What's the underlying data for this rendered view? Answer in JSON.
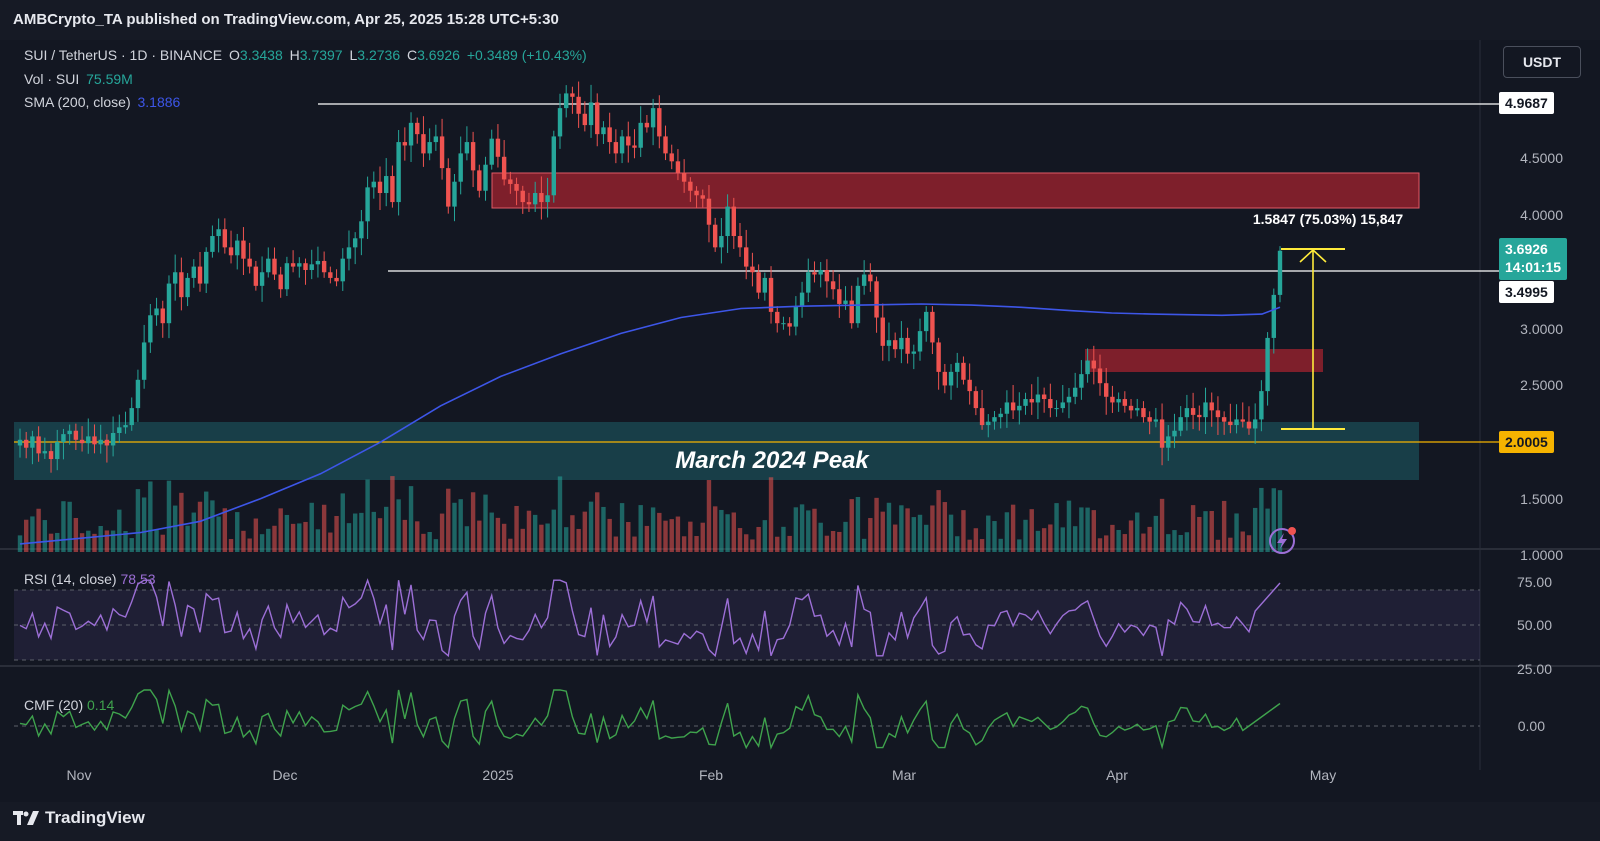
{
  "header": {
    "text": "AMBCrypto_TA published on TradingView.com, Apr 25, 2025 15:28 UTC+5:30"
  },
  "footer": {
    "logo_text": "TradingView",
    "logo_icon": "tradingview-logo-icon"
  },
  "legend": {
    "symbol": "SUI / TetherUS · 1D · BINANCE",
    "open_label": "O",
    "open": "3.3438",
    "high_label": "H",
    "high": "3.7397",
    "low_label": "L",
    "low": "3.2736",
    "close_label": "C",
    "close": "3.6926",
    "change": "+0.3489 (+10.43%)",
    "volume_label": "Vol · SUI",
    "volume": "75.59M",
    "sma_label": "SMA (200, close)",
    "sma": "3.1886"
  },
  "currency": "USDT",
  "price_tags": {
    "resistance_top": "4.9687",
    "last_price": "3.6926",
    "countdown": "14:01:15",
    "resistance_mid": "3.4995",
    "support": "2.0005"
  },
  "annotations": {
    "zone_label": "March 2024 Peak",
    "measure": "1.5847 (75.03%) 15,847"
  },
  "rsi": {
    "label": "RSI (14, close)",
    "value": "78.53",
    "ticks": [
      "75.00",
      "50.00",
      "25.00"
    ]
  },
  "cmf": {
    "label": "CMF (20)",
    "value": "0.14",
    "ticks": [
      "0.00"
    ]
  },
  "colors": {
    "up": "#26a69a",
    "down": "#ef5350",
    "sma": "#3d56e8",
    "supply_zone": "#a3232f",
    "demand_zone": "#1e5e68",
    "measure": "#ffeb3b",
    "rsi": "#9c6fd6",
    "cmf": "#3fa34d",
    "support_line": "#f5b300"
  },
  "chart_data": {
    "type": "candlestick",
    "title": "SUI / TetherUS · 1D · BINANCE",
    "x_ticks": [
      "Nov",
      "Dec",
      "2025",
      "Feb",
      "Mar",
      "Apr",
      "May"
    ],
    "y_ticks": [
      "4.5000",
      "4.0000",
      "3.0000",
      "2.5000",
      "1.5000",
      "1.0000"
    ],
    "ylim": [
      1.0,
      5.4
    ],
    "horizontal_levels": [
      4.9687,
      3.4995,
      2.0005
    ],
    "supply_zones": [
      [
        4.05,
        4.35
      ],
      [
        2.64,
        2.82
      ]
    ],
    "demand_zone": [
      1.67,
      2.17
    ],
    "measure": {
      "from": 2.107,
      "to": 3.692,
      "change": 1.5847,
      "percent": 75.03
    },
    "closes": [
      2.02,
      1.95,
      2.05,
      1.9,
      1.92,
      1.85,
      2.0,
      2.07,
      2.1,
      2.02,
      1.99,
      2.05,
      1.98,
      2.02,
      1.97,
      2.08,
      2.13,
      2.15,
      2.3,
      2.55,
      2.88,
      3.12,
      3.18,
      3.05,
      3.4,
      3.5,
      3.28,
      3.45,
      3.55,
      3.4,
      3.68,
      3.82,
      3.88,
      3.72,
      3.65,
      3.78,
      3.62,
      3.55,
      3.38,
      3.5,
      3.62,
      3.48,
      3.35,
      3.58,
      3.55,
      3.58,
      3.52,
      3.57,
      3.6,
      3.5,
      3.45,
      3.42,
      3.62,
      3.72,
      3.8,
      3.95,
      4.25,
      4.3,
      4.2,
      4.35,
      4.12,
      4.65,
      4.62,
      4.82,
      4.72,
      4.55,
      4.65,
      4.7,
      4.42,
      4.08,
      4.3,
      4.55,
      4.65,
      4.4,
      4.22,
      4.45,
      4.68,
      4.52,
      4.32,
      4.28,
      4.22,
      4.12,
      4.1,
      4.2,
      4.12,
      4.18,
      4.7,
      4.95,
      5.08,
      5.05,
      4.9,
      4.8,
      5.0,
      4.72,
      4.78,
      4.65,
      4.55,
      4.7,
      4.62,
      4.6,
      4.82,
      4.78,
      4.95,
      4.7,
      4.55,
      4.48,
      4.38,
      4.3,
      4.22,
      4.18,
      4.15,
      3.92,
      3.72,
      3.82,
      4.08,
      3.82,
      3.72,
      3.55,
      3.5,
      3.32,
      3.45,
      3.15,
      3.05,
      3.05,
      3.02,
      3.2,
      3.32,
      3.5,
      3.48,
      3.52,
      3.42,
      3.35,
      3.22,
      3.25,
      3.05,
      3.38,
      3.48,
      3.42,
      3.1,
      2.85,
      2.9,
      2.82,
      2.92,
      2.78,
      2.8,
      2.98,
      3.15,
      2.88,
      2.62,
      2.5,
      2.62,
      2.7,
      2.55,
      2.45,
      2.3,
      2.15,
      2.18,
      2.22,
      2.25,
      2.35,
      2.28,
      2.32,
      2.38,
      2.35,
      2.42,
      2.38,
      2.3,
      2.3,
      2.35,
      2.4,
      2.48,
      2.6,
      2.72,
      2.65,
      2.52,
      2.4,
      2.35,
      2.38,
      2.32,
      2.28,
      2.3,
      2.22,
      2.18,
      2.2,
      1.95,
      2.05,
      2.1,
      2.22,
      2.3,
      2.24,
      2.22,
      2.35,
      2.28,
      2.22,
      2.18,
      2.15,
      2.2,
      2.18,
      2.12,
      2.2,
      2.45,
      2.92,
      3.3,
      3.69
    ],
    "sma_200": [
      [
        0,
        1.1
      ],
      [
        60,
        1.15
      ],
      [
        120,
        1.2
      ],
      [
        180,
        1.3
      ],
      [
        240,
        1.5
      ],
      [
        300,
        1.72
      ],
      [
        360,
        2.0
      ],
      [
        420,
        2.32
      ],
      [
        480,
        2.58
      ],
      [
        540,
        2.78
      ],
      [
        600,
        2.96
      ],
      [
        660,
        3.1
      ],
      [
        720,
        3.18
      ],
      [
        780,
        3.2
      ],
      [
        840,
        3.21
      ],
      [
        900,
        3.22
      ],
      [
        950,
        3.21
      ],
      [
        1000,
        3.19
      ],
      [
        1050,
        3.16
      ],
      [
        1090,
        3.14
      ],
      [
        1130,
        3.13
      ],
      [
        1200,
        3.12
      ],
      [
        1240,
        3.13
      ],
      [
        1258,
        3.19
      ]
    ]
  }
}
